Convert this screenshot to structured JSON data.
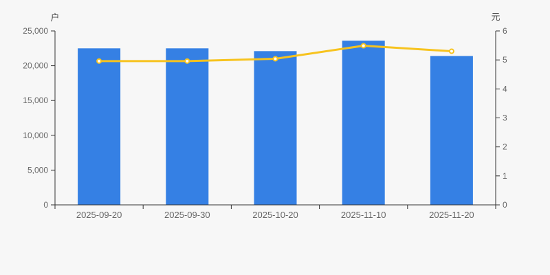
{
  "chart_data": {
    "type": "bar",
    "title": "",
    "categories": [
      "2025-09-20",
      "2025-09-30",
      "2025-10-20",
      "2025-11-10",
      "2025-11-20"
    ],
    "series": [
      {
        "name": "户",
        "type": "bar",
        "axis": "left",
        "color": "#3580e4",
        "values": [
          22500,
          22500,
          22100,
          23600,
          21400
        ]
      },
      {
        "name": "元",
        "type": "line",
        "axis": "right",
        "color": "#f7c31e",
        "marker_fill": "#ffffff",
        "values": [
          4.96,
          4.96,
          5.04,
          5.49,
          5.3
        ]
      }
    ],
    "left_axis": {
      "name": "户",
      "min": 0,
      "max": 25000,
      "tick_step": 5000,
      "tick_labels": [
        "0",
        "5,000",
        "10,000",
        "15,000",
        "20,000",
        "25,000"
      ]
    },
    "right_axis": {
      "name": "元",
      "min": 0,
      "max": 6,
      "tick_step": 1,
      "tick_labels": [
        "0",
        "1",
        "2",
        "3",
        "4",
        "5",
        "6"
      ]
    },
    "grid": false,
    "legend": false,
    "colors": {
      "background": "#f7f7f7",
      "axis_line": "#333333",
      "tick_label": "#666666",
      "axis_name": "#4d4d4d"
    }
  }
}
